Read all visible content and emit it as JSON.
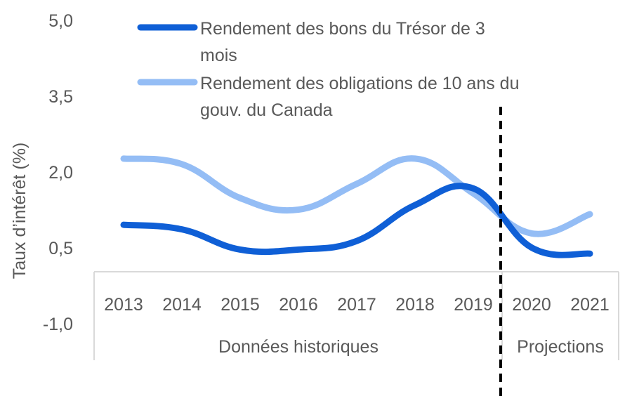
{
  "chart_data": {
    "type": "line",
    "title": "",
    "ylabel": "Taux d’intérêt  (%)",
    "ylim": [
      -1.0,
      5.0
    ],
    "y_ticks": [
      "5,0",
      "3,5",
      "2,0",
      "0,5",
      "-1,0"
    ],
    "y_tick_values": [
      5.0,
      3.5,
      2.0,
      0.5,
      -1.0
    ],
    "categories": [
      "2013",
      "2014",
      "2015",
      "2016",
      "2017",
      "2018",
      "2019",
      "2020",
      "2021"
    ],
    "groups": [
      {
        "label": "Données historiques",
        "categories": [
          "2013",
          "2014",
          "2015",
          "2016",
          "2017",
          "2018",
          "2019"
        ]
      },
      {
        "label": "Projections",
        "categories": [
          "2020",
          "2021"
        ]
      }
    ],
    "series": [
      {
        "name": "Rendement des bons du Trésor de 3 mois",
        "color": "#0f5fd6",
        "values": [
          0.97,
          0.88,
          0.48,
          0.48,
          0.65,
          1.36,
          1.69,
          0.52,
          0.4
        ]
      },
      {
        "name": "Rendement des obligations de 10 ans du gouv. du Canada",
        "color": "#94bdf5",
        "values": [
          2.28,
          2.17,
          1.5,
          1.27,
          1.78,
          2.28,
          1.59,
          0.8,
          1.18
        ]
      }
    ],
    "legend": {
      "position": "top",
      "lines": [
        [
          "Rendement des bons du Trésor de 3",
          "mois"
        ],
        [
          "Rendement des obligations de 10 ans du",
          "gouv. du Canada"
        ]
      ]
    },
    "divider": {
      "style": "dashed",
      "between": [
        "2019",
        "2020"
      ]
    },
    "grid": false
  }
}
